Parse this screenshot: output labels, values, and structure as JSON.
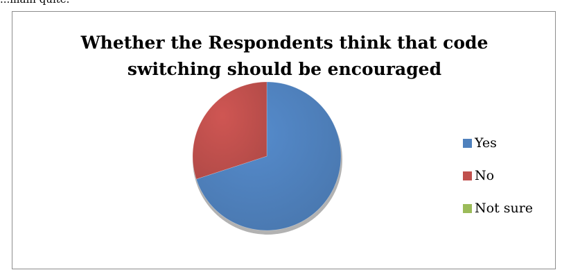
{
  "page": {
    "top_fragment": "...main quite."
  },
  "chart_data": {
    "type": "pie",
    "title_lines": [
      "Whether the Respondents think that code",
      "switching should be encouraged"
    ],
    "categories": [
      "Yes",
      "No",
      "Not sure"
    ],
    "values": [
      70,
      30,
      0
    ],
    "colors": [
      "#4f81bd",
      "#c0504d",
      "#9bbb59"
    ],
    "legend_position": "right",
    "style": "3d-pie"
  }
}
